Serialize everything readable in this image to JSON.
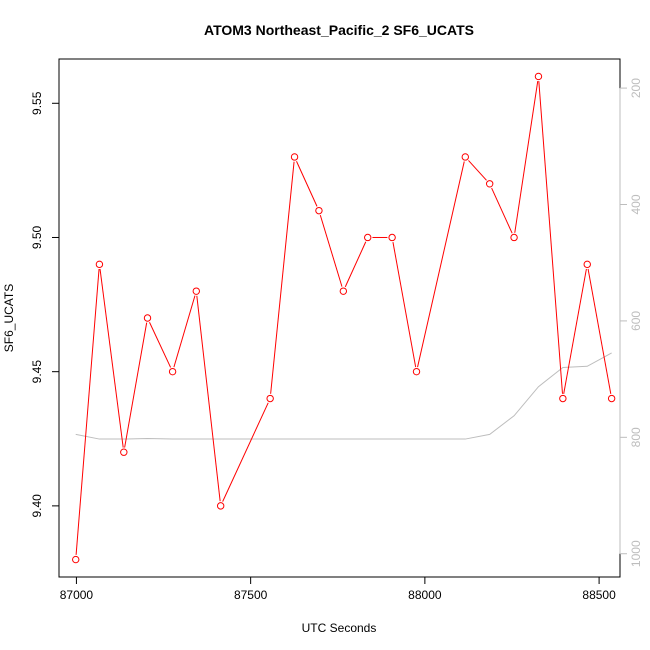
{
  "chart_data": {
    "type": "line",
    "title": "ATOM3 Northeast_Pacific_2 SF6_UCATS",
    "xlabel": "UTC Seconds",
    "ylabel": "SF6_UCATS",
    "xlim": [
      86950,
      88560
    ],
    "ylim": [
      9.3735,
      9.5665
    ],
    "x_ticks": [
      87000,
      87500,
      88000,
      88500
    ],
    "y_ticks": [
      9.4,
      9.45,
      9.5,
      9.55
    ],
    "y_tick_labels": [
      "9.40",
      "9.45",
      "9.50",
      "9.55"
    ],
    "secondary_axis": {
      "side": "right",
      "lim": [
        1040,
        150
      ],
      "ticks": [
        200,
        400,
        600,
        800,
        1000
      ],
      "color": "#bdbdbd"
    },
    "series": [
      {
        "color": "#ff0000",
        "marker": "open-circle",
        "x": [
          86998,
          87066,
          87136,
          87204,
          87276,
          87344,
          87414,
          87556,
          87626,
          87696,
          87766,
          87836,
          87906,
          87976,
          88116,
          88186,
          88256,
          88326,
          88396,
          88466,
          88536
        ],
        "y": [
          9.38,
          9.49,
          9.42,
          9.47,
          9.45,
          9.48,
          9.4,
          9.44,
          9.53,
          9.51,
          9.48,
          9.5,
          9.5,
          9.45,
          9.53,
          9.52,
          9.5,
          9.56,
          9.44,
          9.49,
          9.44
        ]
      },
      {
        "color": "#bdbdbd",
        "axis": "right",
        "x": [
          86998,
          87066,
          87136,
          87204,
          87276,
          87344,
          87414,
          87556,
          87626,
          87696,
          87766,
          87836,
          87906,
          87976,
          88116,
          88186,
          88256,
          88326,
          88396,
          88466,
          88536
        ],
        "y": [
          795,
          803,
          803,
          802,
          803,
          803,
          803,
          803,
          803,
          803,
          803,
          803,
          803,
          803,
          803,
          795,
          763,
          713,
          680,
          678,
          655
        ]
      }
    ],
    "grid": false,
    "legend": "none"
  }
}
